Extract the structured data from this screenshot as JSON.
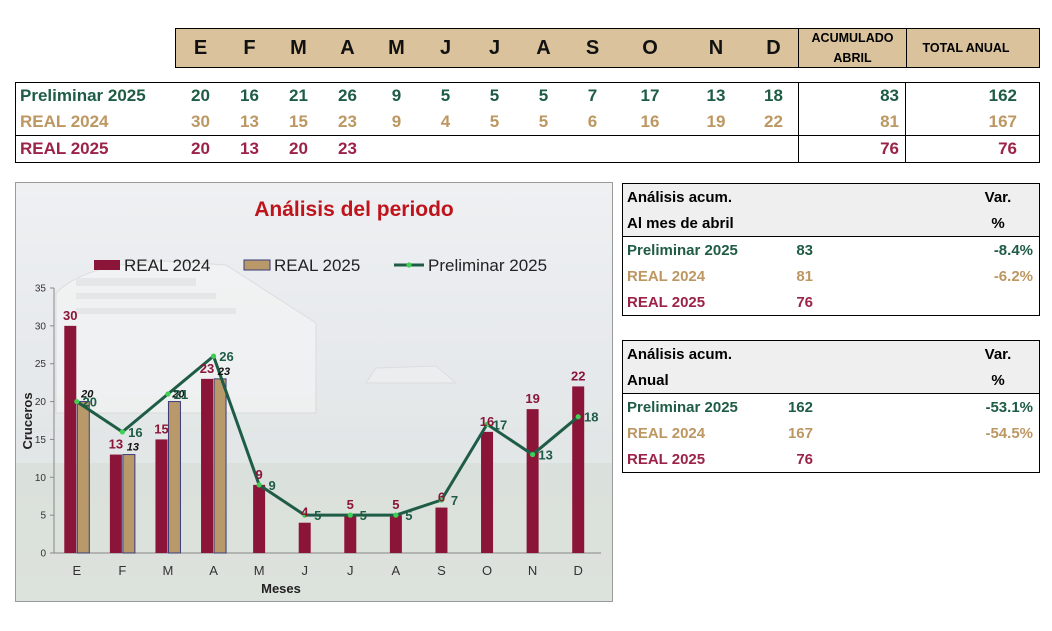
{
  "months": [
    "E",
    "F",
    "M",
    "A",
    "M",
    "J",
    "J",
    "A",
    "S",
    "O",
    "N",
    "D"
  ],
  "header": {
    "acumulado_line1": "ACUMULADO",
    "acumulado_line2": "ABRIL",
    "total": "TOTAL ANUAL"
  },
  "rows": [
    {
      "label": "Preliminar 2025",
      "values": [
        "20",
        "16",
        "21",
        "26",
        "9",
        "5",
        "5",
        "5",
        "7",
        "17",
        "13",
        "18"
      ],
      "acumulado": "83",
      "total": "162",
      "color": "#1f5c45"
    },
    {
      "label": "REAL 2024",
      "values": [
        "30",
        "13",
        "15",
        "23",
        "9",
        "4",
        "5",
        "5",
        "6",
        "16",
        "19",
        "22"
      ],
      "acumulado": "81",
      "total": "167",
      "color": "#bd9762"
    },
    {
      "label": "REAL 2025",
      "values": [
        "20",
        "13",
        "20",
        "23",
        "",
        "",
        "",
        "",
        "",
        "",
        "",
        ""
      ],
      "acumulado": "76",
      "total": "76",
      "color": "#9b2248"
    }
  ],
  "analysis_abril": {
    "h1": "Análisis acum.",
    "h2": "Al mes de abril",
    "var1": "Var.",
    "var2": "%",
    "rows": [
      {
        "label": "Preliminar 2025",
        "value": "83",
        "var": "-8.4%"
      },
      {
        "label": "REAL 2024",
        "value": "81",
        "var": "-6.2%"
      },
      {
        "label": "REAL 2025",
        "value": "76",
        "var": ""
      }
    ]
  },
  "analysis_anual": {
    "h1": "Análisis acum.",
    "h2": "Anual",
    "var1": "Var.",
    "var2": "%",
    "rows": [
      {
        "label": "Preliminar 2025",
        "value": "162",
        "var": "-53.1%"
      },
      {
        "label": "REAL 2024",
        "value": "167",
        "var": "-54.5%"
      },
      {
        "label": "REAL 2025",
        "value": "76",
        "var": ""
      }
    ]
  },
  "chart_data": {
    "type": "bar",
    "title": "Análisis del periodo",
    "xlabel": "Meses",
    "ylabel": "Cruceros",
    "categories": [
      "E",
      "F",
      "M",
      "A",
      "M",
      "J",
      "J",
      "A",
      "S",
      "O",
      "N",
      "D"
    ],
    "ylim": [
      0,
      35
    ],
    "yticks": [
      0,
      5,
      10,
      15,
      20,
      25,
      30,
      35
    ],
    "legend": "top",
    "series": [
      {
        "name": "REAL 2024",
        "kind": "bar",
        "color": "#8b1538",
        "values": [
          30,
          13,
          15,
          23,
          9,
          4,
          5,
          5,
          6,
          16,
          19,
          22
        ]
      },
      {
        "name": "REAL 2025",
        "kind": "bar",
        "color": "#b9996a",
        "values": [
          20,
          13,
          20,
          23,
          null,
          null,
          null,
          null,
          null,
          null,
          null,
          null
        ]
      },
      {
        "name": "Preliminar 2025",
        "kind": "line",
        "color": "#1f5c45",
        "values": [
          20,
          16,
          21,
          26,
          9,
          5,
          5,
          5,
          7,
          17,
          13,
          18
        ]
      }
    ]
  }
}
